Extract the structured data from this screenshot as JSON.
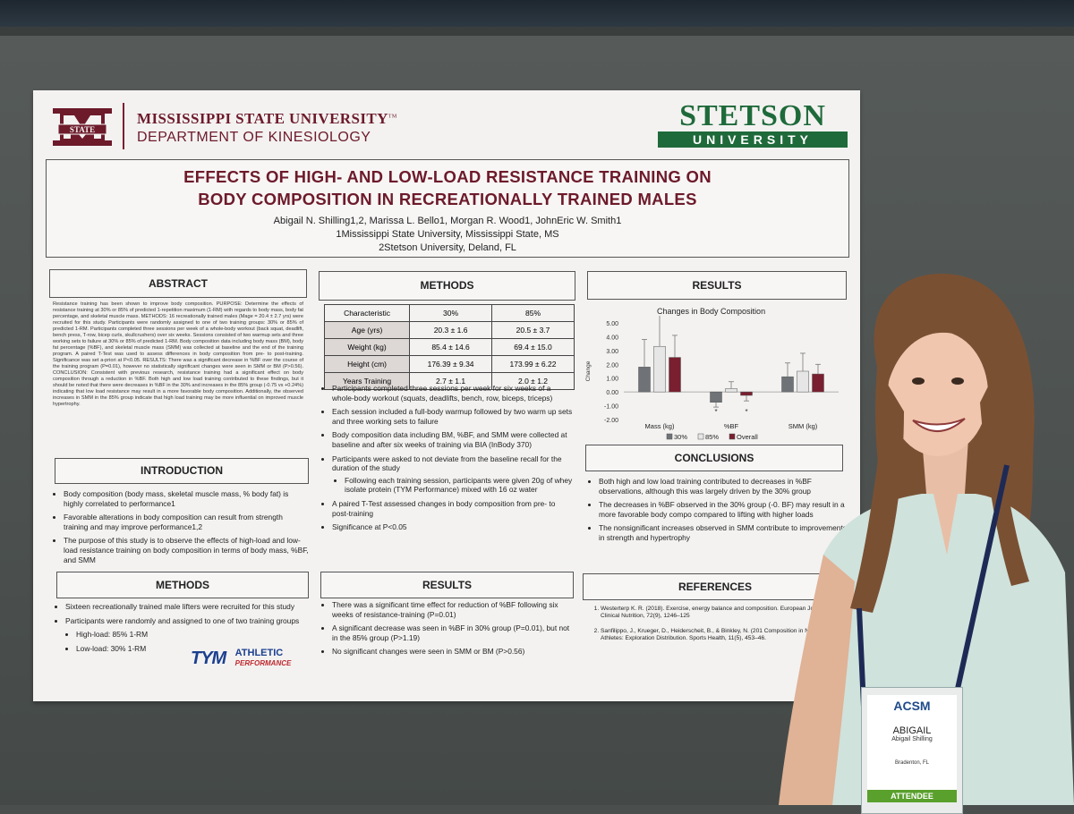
{
  "poster": {
    "msu": {
      "name": "MISSISSIPPI STATE UNIVERSITY",
      "tm": "TM",
      "dept": "DEPARTMENT OF KINESIOLOGY",
      "logo_text": "STATE"
    },
    "stetson": {
      "name": "STETSON",
      "sub": "UNIVERSITY"
    },
    "title_line1": "EFFECTS OF HIGH- AND LOW-LOAD RESISTANCE TRAINING ON",
    "title_line2": "BODY COMPOSITION IN RECREATIONALLY TRAINED MALES",
    "authors": "Abigail N. Shilling1,2, Marissa L. Bello1, Morgan R. Wood1, JohnEric W. Smith1",
    "affil1": "1Mississippi State University, Mississippi State, MS",
    "affil2": "2Stetson University, Deland, FL",
    "headers": {
      "abstract": "ABSTRACT",
      "methods1": "METHODS",
      "results1": "RESULTS",
      "introduction": "INTRODUCTION",
      "conclusions": "CONCLUSIONS",
      "methods2": "METHODS",
      "results2": "RESULTS",
      "references": "REFERENCES"
    },
    "abstract_text": "Resistance training has been shown to improve body composition. PURPOSE: Determine the effects of resistance training at 30% or 85% of predicted 1-repetition maximum (1-RM) with regards to body mass, body fat percentage, and skeletal muscle mass. METHODS: 16 recreationally trained males (Mage = 20.4 ± 2.7 yrs) were recruited for this study. Participants were randomly assigned to one of two training groups: 30% or 85% of predicted 1-RM. Participants completed three sessions per week of a whole-body workout (back squat, deadlift, bench press, T-row, bicep curls, skullcrushers) over six weeks. Sessions consisted of two warmup sets and three working sets to failure at 30% or 85% of predicted 1-RM. Body composition data including body mass (BM), body fat percentage (%BF), and skeletal muscle mass (SMM) was collected at baseline and the end of the training program. A paired T-Test was used to assess differences in body composition from pre- to post-training. Significance was set a-priori at P<0.05. RESULTS: There was a significant decrease in %BF over the course of the training program (P=0.01), however no statistically significant changes were seen in SMM or BM (P>0.56). CONCLUSION: Consistent with previous research, resistance training had a significant effect on body composition through a reduction in %BF. Both high and low load training contributed to these findings, but it should be noted that there were decreases in %BF in the 30% and increases in the 85% group (-0.75 vs +0.24%) indicating that low load resistance may result in a more favorable body composition. Additionally, the observed increases in SMM in the 85% group indicate that high load training may be more influential on improved muscle hypertrophy.",
    "intro": [
      "Body composition (body mass, skeletal muscle mass, % body fat) is highly correlated to performance1",
      "Favorable alterations in body composition can result from strength training and may improve performance1,2",
      "The purpose of this study is to observe the effects of high-load and low-load resistance training on body composition in terms of body mass, %BF, and SMM"
    ],
    "methods2_items": [
      "Sixteen recreationally trained male lifters were recruited for this study",
      "Participants were randomly and assigned to one of two training groups"
    ],
    "methods2_sub": [
      "High-load: 85% 1-RM",
      "Low-load: 30% 1-RM"
    ],
    "tym": {
      "mark": "TYM",
      "line1": "ATHLETIC",
      "line2": "PERFORMANCE"
    },
    "table": {
      "header": [
        "Characteristic",
        "30%",
        "85%"
      ],
      "rows": [
        [
          "Age (yrs)",
          "20.3 ± 1.6",
          "20.5 ± 3.7"
        ],
        [
          "Weight (kg)",
          "85.4 ± 14.6",
          "69.4 ± 15.0"
        ],
        [
          "Height (cm)",
          "176.39 ± 9.34",
          "173.99 ± 6.22"
        ],
        [
          "Years Training",
          "2.7 ± 1.1",
          "2.0 ± 1.2"
        ]
      ]
    },
    "methods1_items": [
      "Participants completed three sessions per week for six weeks of a whole-body workout (squats, deadlifts, bench, row, biceps, triceps)",
      "Each session included a full-body warmup followed by two warm up sets and three working sets to failure",
      "Body composition data including BM, %BF, and SMM were collected at baseline and after six weeks of training via BIA (InBody 370)",
      "Participants were asked to not deviate from the baseline recall for the duration of the study",
      "A paired T-Test assessed changes in body composition from pre- to post-training",
      "Significance at P<0.05"
    ],
    "methods1_sub": "Following each training session, participants were given 20g of whey isolate protein (TYM Performance) mixed with 16 oz water",
    "results2_items": [
      "There was a significant time effect for reduction of %BF following six weeks of resistance-training (P=0.01)",
      "A significant decrease was seen in %BF in 30% group (P=0.01), but not in the 85% group (P>1.19)",
      "No significant changes were seen in SMM or BM (P>0.56)"
    ],
    "conclusions_items": [
      "Both high and low load training contributed to decreases in %BF observations, although this was largely driven by the 30% group",
      "The decreases in %BF observed in the 30% group (-0. BF) may result in a more favorable body compo compared to lifting with higher loads",
      "The nonsignificant increases observed in SMM contribute to improvements in strength and hypertrophy"
    ],
    "references_items": [
      "Westerterp K. R. (2018). Exercise, energy balance and composition. European Journal of Clinical Nutrition, 72(9), 1246–125",
      "Sanfilippo, J., Krueger, D., Heiderscheit, B., & Binkley, N. (201 Composition in NCAA Division I Athletes: Exploration Distribution. Sports Health, 11(5), 453–46."
    ]
  },
  "chart_data": {
    "type": "bar",
    "title": "Changes in Body Composition",
    "ylabel": "Change",
    "categories": [
      "Mass (kg)",
      "%BF",
      "SMM (kg)"
    ],
    "series": [
      {
        "name": "30%",
        "values": [
          1.8,
          -0.75,
          1.1
        ]
      },
      {
        "name": "85%",
        "values": [
          3.3,
          0.24,
          1.5
        ]
      },
      {
        "name": "Overall",
        "values": [
          2.5,
          -0.25,
          1.3
        ]
      }
    ],
    "errors": [
      [
        2.0,
        2.6,
        1.6
      ],
      [
        0.35,
        0.5,
        0.4
      ],
      [
        1.0,
        1.3,
        0.7
      ]
    ],
    "ylim": [
      -2.0,
      5.0
    ],
    "yticks": [
      "5.00",
      "4.00",
      "3.00",
      "2.00",
      "1.00",
      "0.00",
      "-1.00",
      "-2.00"
    ],
    "colors": [
      "#6f7377",
      "#e6e6e6",
      "#7a1f2f"
    ],
    "legend": "bottom",
    "annotations": [
      "*",
      "*"
    ]
  },
  "badge": {
    "org": "ACSM",
    "name": "ABIGAIL",
    "full": "Abigail Shilling",
    "city": "Bradenton, FL",
    "role": "ATTENDEE"
  }
}
